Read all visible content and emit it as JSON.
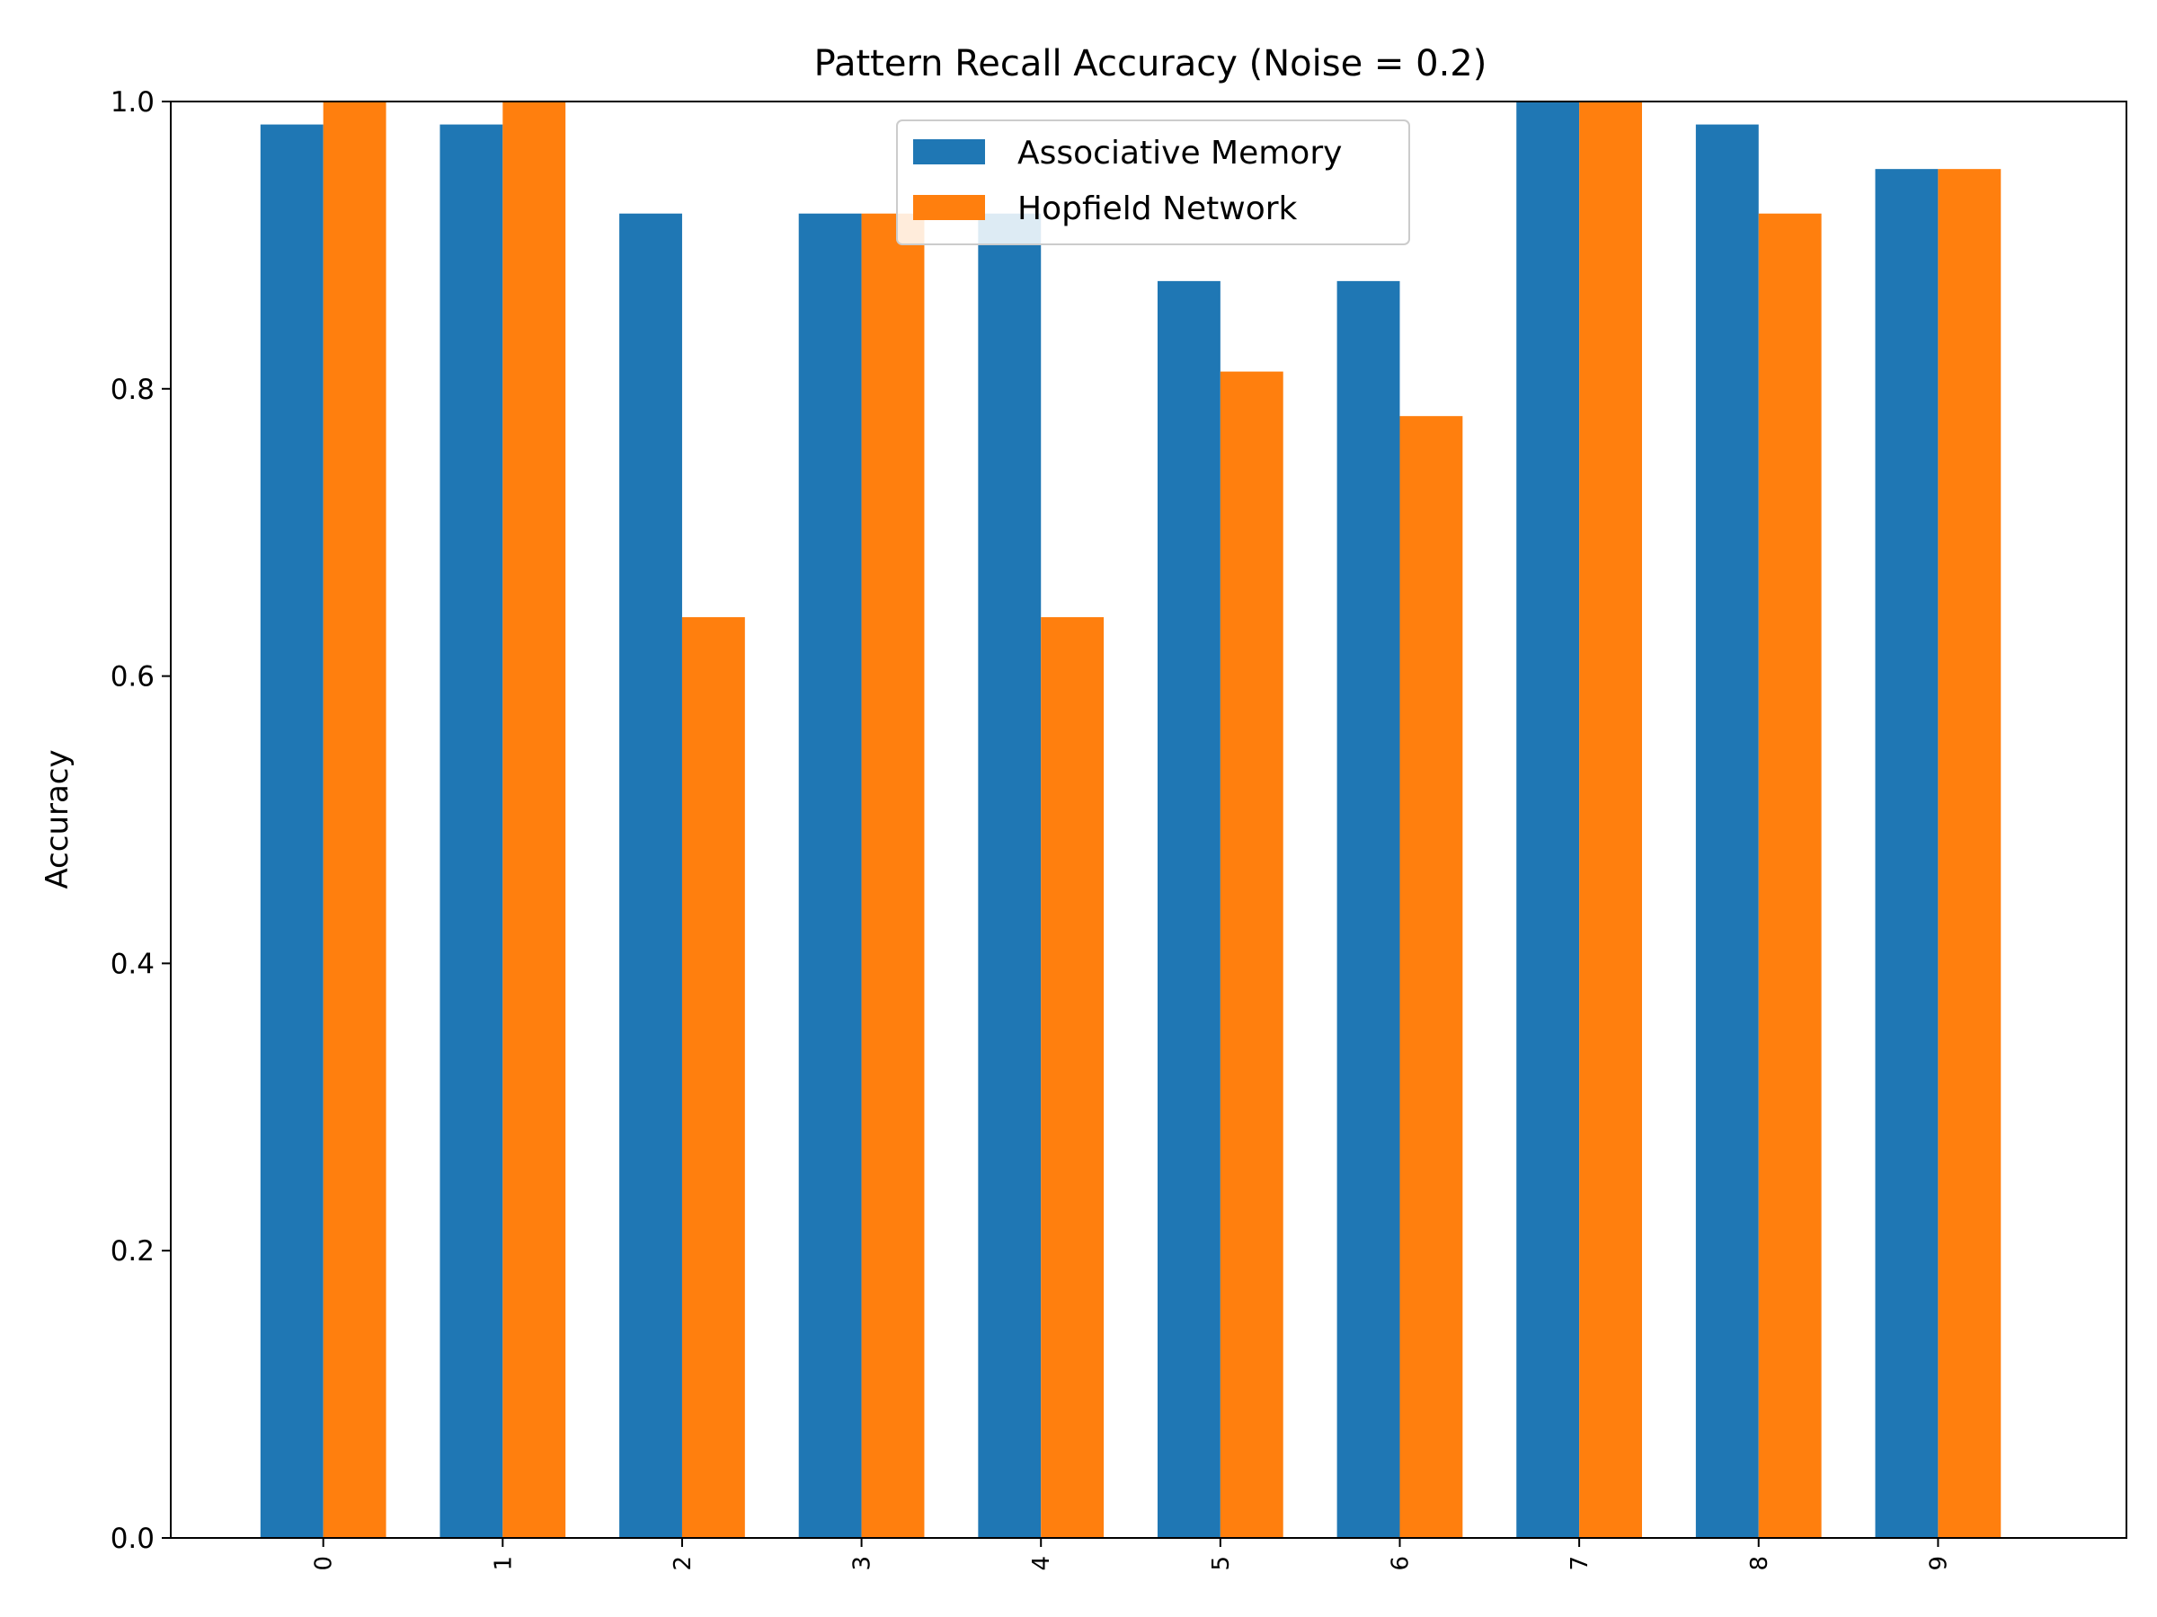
{
  "chart_data": {
    "type": "bar",
    "title": "Pattern Recall Accuracy (Noise = 0.2)",
    "xlabel": "",
    "ylabel": "Accuracy",
    "categories": [
      "0",
      "1",
      "2",
      "3",
      "4",
      "5",
      "6",
      "7",
      "8",
      "9"
    ],
    "series": [
      {
        "name": "Associative Memory",
        "color": "#1f77b4",
        "values": [
          0.984,
          0.984,
          0.922,
          0.922,
          0.922,
          0.875,
          0.875,
          1.0,
          0.984,
          0.953
        ]
      },
      {
        "name": "Hopfield Network",
        "color": "#ff7f0e",
        "values": [
          1.0,
          1.0,
          0.641,
          0.922,
          0.641,
          0.812,
          0.781,
          1.0,
          0.922,
          0.953
        ]
      }
    ],
    "ylim": [
      0.0,
      1.0
    ],
    "yticks": [
      "0.0",
      "0.2",
      "0.4",
      "0.6",
      "0.8",
      "1.0"
    ],
    "grid": false,
    "legend_position": "upper center"
  }
}
